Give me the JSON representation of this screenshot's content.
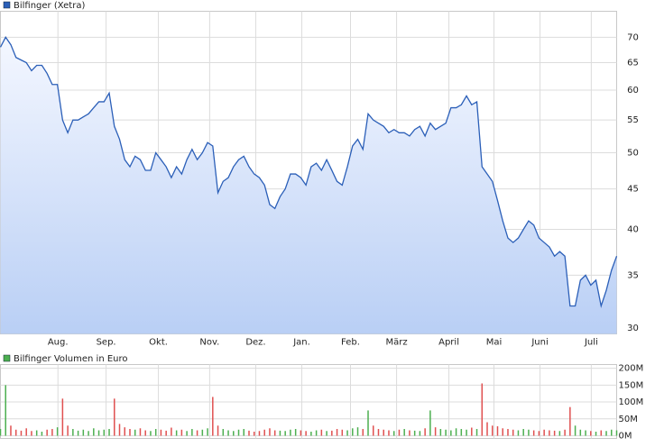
{
  "chart_data": [
    {
      "type": "line",
      "log_scale": true,
      "grid": true,
      "xlim": [
        0,
        119
      ],
      "xticks": [
        {
          "value": 11.1,
          "label": "Aug."
        },
        {
          "value": 20.4,
          "label": "Sep."
        },
        {
          "value": 30.5,
          "label": "Okt."
        },
        {
          "value": 40.4,
          "label": "Nov."
        },
        {
          "value": 49.3,
          "label": "Dez."
        },
        {
          "value": 58.2,
          "label": "Jan."
        },
        {
          "value": 67.6,
          "label": "Feb."
        },
        {
          "value": 76.5,
          "label": "März"
        },
        {
          "value": 86.6,
          "label": "April"
        },
        {
          "value": 95.3,
          "label": "Mai"
        },
        {
          "value": 104.2,
          "label": "Juni"
        },
        {
          "value": 114.1,
          "label": "Juli"
        }
      ],
      "ylim": [
        29.5,
        75.5
      ],
      "yticks": [
        30,
        35,
        40,
        45,
        50,
        55,
        60,
        65,
        70
      ],
      "series": [
        {
          "name": "Bilfinger (Xetra)",
          "color": "#2b5fb8",
          "values": [
            68,
            70,
            68.5,
            66,
            65.5,
            65,
            63.5,
            64.5,
            64.5,
            63,
            61,
            61,
            55,
            53,
            55,
            55,
            55.5,
            56,
            57,
            58,
            58,
            59.5,
            54,
            52,
            49,
            48,
            49.5,
            49,
            47.5,
            47.5,
            50,
            49,
            48,
            46.5,
            48,
            47,
            49,
            50.5,
            49,
            50,
            51.5,
            51,
            44.5,
            46,
            46.5,
            48,
            49,
            49.5,
            48,
            47,
            46.5,
            45.5,
            43,
            42.5,
            44,
            45,
            47,
            47,
            46.5,
            45.5,
            48,
            48.5,
            47.5,
            49,
            47.5,
            46,
            45.5,
            48,
            51,
            52,
            50.5,
            56,
            55,
            54.5,
            54,
            53,
            53.5,
            53,
            53,
            52.5,
            53.5,
            54,
            52.5,
            54.5,
            53.5,
            54,
            54.5,
            57,
            57,
            57.5,
            59,
            57.5,
            58,
            48,
            47,
            46,
            43.5,
            41,
            39,
            38.5,
            39,
            40,
            41,
            40.5,
            39,
            38.5,
            38,
            37,
            37.5,
            37,
            32,
            32,
            34.5,
            35,
            34,
            34.5,
            32,
            33.5,
            35.5,
            37
          ]
        }
      ]
    },
    {
      "type": "bar",
      "grid": true,
      "up_color": "#4caf50",
      "down_color": "#e05050",
      "ylim": [
        -8,
        211
      ],
      "yticks": [
        {
          "value": 0,
          "label": "0M"
        },
        {
          "value": 50,
          "label": "50M"
        },
        {
          "value": 100,
          "label": "100M"
        },
        {
          "value": 150,
          "label": "150M"
        },
        {
          "value": 200,
          "label": "200M"
        }
      ],
      "series": [
        {
          "name": "Bilfinger Volumen in Euro",
          "color": "#4caf50",
          "values": [
            20,
            150,
            30,
            18,
            15,
            22,
            14,
            16,
            12,
            18,
            20,
            25,
            110,
            30,
            20,
            15,
            18,
            14,
            22,
            16,
            18,
            20,
            110,
            35,
            25,
            20,
            18,
            22,
            16,
            14,
            20,
            18,
            15,
            24,
            16,
            18,
            14,
            20,
            16,
            18,
            22,
            115,
            30,
            20,
            16,
            14,
            18,
            20,
            15,
            12,
            14,
            18,
            22,
            16,
            15,
            14,
            18,
            20,
            16,
            14,
            12,
            16,
            18,
            14,
            15,
            20,
            18,
            16,
            22,
            25,
            20,
            75,
            30,
            20,
            18,
            16,
            14,
            18,
            20,
            16,
            15,
            14,
            22,
            75,
            25,
            20,
            18,
            16,
            22,
            20,
            18,
            24,
            20,
            155,
            40,
            30,
            28,
            22,
            20,
            18,
            16,
            20,
            18,
            16,
            14,
            18,
            16,
            15,
            14,
            18,
            85,
            30,
            18,
            16,
            14,
            12,
            16,
            14,
            18,
            16
          ]
        }
      ]
    }
  ]
}
